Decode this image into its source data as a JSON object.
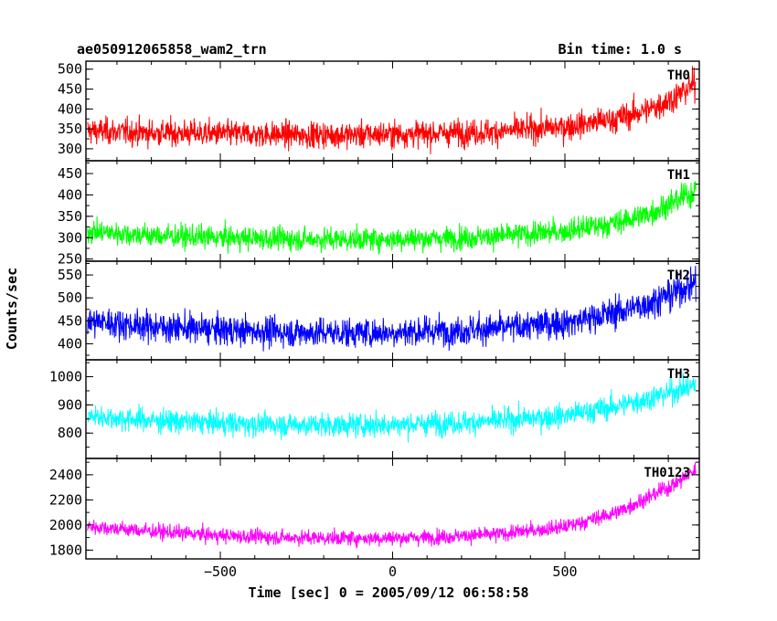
{
  "header": {
    "title": "ae050912065858_wam2_trn",
    "bin_time": "Bin time: 1.0 s"
  },
  "chart_data": {
    "type": "line",
    "title": "ae050912065858_wam2_trn",
    "subtitle": "Bin time: 1.0 s",
    "xlabel": "Time [sec] 0 = 2005/09/12 06:58:58",
    "ylabel": "Counts/sec",
    "xlim": [
      -890,
      890
    ],
    "x_ticks": [
      -500,
      0,
      500
    ],
    "x_tick_labels": [
      "−500",
      "0",
      "500"
    ],
    "x_step": 1.0,
    "grid": false,
    "legend": "none",
    "panels": [
      {
        "name": "TH0",
        "color": "#ff0000",
        "ylim": [
          270,
          520
        ],
        "yticks": [
          300,
          350,
          400,
          450,
          500
        ],
        "x_range": [
          -885,
          880
        ],
        "trend_x": [
          -885,
          -700,
          -500,
          -300,
          -100,
          0,
          100,
          300,
          500,
          650,
          750,
          820,
          880
        ],
        "trend_y": [
          345,
          340,
          338,
          335,
          335,
          337,
          338,
          343,
          355,
          375,
          400,
          430,
          465
        ],
        "noise_amplitude": 30
      },
      {
        "name": "TH1",
        "color": "#00ff00",
        "ylim": [
          245,
          480
        ],
        "yticks": [
          250,
          300,
          350,
          400,
          450
        ],
        "x_range": [
          -885,
          880
        ],
        "trend_x": [
          -885,
          -700,
          -500,
          -300,
          -100,
          0,
          100,
          300,
          500,
          650,
          750,
          820,
          880
        ],
        "trend_y": [
          315,
          305,
          300,
          297,
          296,
          297,
          298,
          303,
          315,
          335,
          358,
          385,
          410
        ],
        "noise_amplitude": 25
      },
      {
        "name": "TH2",
        "color": "#0000ff",
        "ylim": [
          365,
          580
        ],
        "yticks": [
          400,
          450,
          500,
          550
        ],
        "x_range": [
          -885,
          880
        ],
        "trend_x": [
          -885,
          -700,
          -500,
          -300,
          -100,
          0,
          100,
          300,
          500,
          650,
          750,
          820,
          880
        ],
        "trend_y": [
          450,
          438,
          430,
          425,
          424,
          425,
          427,
          433,
          446,
          468,
          490,
          512,
          535
        ],
        "noise_amplitude": 30
      },
      {
        "name": "TH3",
        "color": "#00ffff",
        "ylim": [
          710,
          1060
        ],
        "yticks": [
          800,
          900,
          1000
        ],
        "x_range": [
          -885,
          880
        ],
        "trend_x": [
          -885,
          -700,
          -500,
          -300,
          -100,
          0,
          100,
          300,
          500,
          650,
          750,
          820,
          880
        ],
        "trend_y": [
          860,
          845,
          835,
          830,
          828,
          830,
          833,
          842,
          862,
          895,
          925,
          950,
          970
        ],
        "noise_amplitude": 38
      },
      {
        "name": "TH0123",
        "color": "#ff00ff",
        "ylim": [
          1730,
          2530
        ],
        "yticks": [
          1800,
          2000,
          2200,
          2400
        ],
        "x_range": [
          -885,
          880
        ],
        "trend_x": [
          -885,
          -700,
          -500,
          -300,
          -100,
          0,
          100,
          300,
          500,
          650,
          750,
          820,
          880
        ],
        "trend_y": [
          1990,
          1950,
          1915,
          1900,
          1895,
          1897,
          1902,
          1925,
          1985,
          2100,
          2230,
          2330,
          2440
        ],
        "noise_amplitude": 55
      }
    ]
  }
}
